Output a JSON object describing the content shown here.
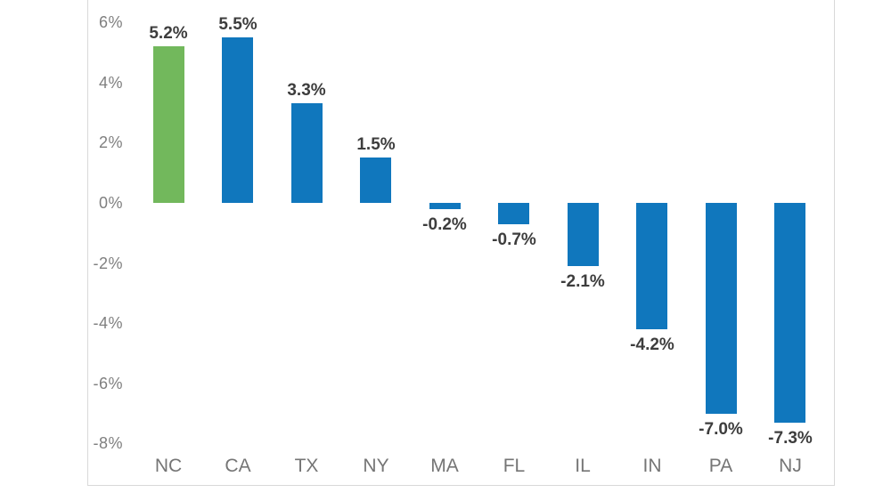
{
  "chart_data": {
    "type": "bar",
    "title": "",
    "xlabel": "",
    "ylabel": "",
    "grid": false,
    "legend": null,
    "ylim": [
      -8,
      6
    ],
    "categories": [
      "NC",
      "CA",
      "TX",
      "NY",
      "MA",
      "FL",
      "IL",
      "IN",
      "PA",
      "NJ"
    ],
    "values": [
      5.2,
      5.5,
      3.3,
      1.5,
      -0.2,
      -0.7,
      -2.1,
      -4.2,
      -7.0,
      -7.3
    ],
    "value_labels": [
      "5.2%",
      "5.5%",
      "3.3%",
      "1.5%",
      "-0.2%",
      "-0.7%",
      "-2.1%",
      "-4.2%",
      "-7.0%",
      "-7.3%"
    ],
    "bar_colors": [
      "#72B85C",
      "#1077BD",
      "#1077BD",
      "#1077BD",
      "#1077BD",
      "#1077BD",
      "#1077BD",
      "#1077BD",
      "#1077BD",
      "#1077BD"
    ],
    "highlight_color": "#72B85C",
    "default_color": "#1077BD",
    "y_ticks": [
      {
        "value": 6,
        "label": "6%"
      },
      {
        "value": 4,
        "label": "4%"
      },
      {
        "value": 2,
        "label": "2%"
      },
      {
        "value": 0,
        "label": "0%"
      },
      {
        "value": -2,
        "label": "-2%"
      },
      {
        "value": -4,
        "label": "-4%"
      },
      {
        "value": -6,
        "label": "-6%"
      },
      {
        "value": -8,
        "label": "-8%"
      }
    ]
  },
  "colors": {
    "value_label": "#3d3d3d",
    "tick_label": "#7f7f7f",
    "category_label": "#757575",
    "plot_border": "#d9d9d9",
    "background": "#ffffff"
  }
}
